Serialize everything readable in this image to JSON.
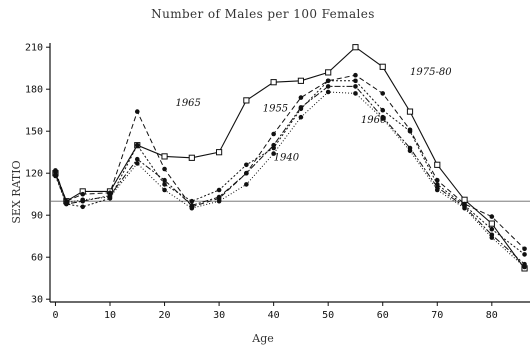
{
  "chart_data": {
    "type": "line",
    "title": "Number of Males per 100 Females",
    "xlabel": "Age",
    "ylabel": "SEX RATIO",
    "xlim": [
      -1,
      87
    ],
    "ylim": [
      28,
      213
    ],
    "xticks": [
      0,
      10,
      20,
      30,
      40,
      50,
      60,
      70,
      80
    ],
    "yticks": [
      30,
      60,
      90,
      120,
      150,
      180,
      210
    ],
    "ytick_labels": [
      "30",
      "60",
      "90",
      "120",
      "150",
      "180",
      "210"
    ],
    "reference_line": 100,
    "grid": false,
    "x": [
      0,
      2,
      5,
      10,
      15,
      20,
      25,
      30,
      35,
      40,
      45,
      50,
      55,
      60,
      65,
      70,
      75,
      80,
      86
    ],
    "series": [
      {
        "name": "1975-80",
        "marker": "square",
        "dash": "0",
        "values": [
          120,
          100,
          107,
          107,
          140,
          132,
          131,
          135,
          172,
          185,
          186,
          192,
          210,
          196,
          164,
          126,
          101,
          84,
          52
        ]
      },
      {
        "name": "1965",
        "marker": "dot",
        "dash": "5 3",
        "values": [
          121,
          100,
          105,
          106,
          164,
          123,
          96,
          102,
          120,
          148,
          174,
          186,
          190,
          177,
          151,
          115,
          98,
          89,
          66
        ]
      },
      {
        "name": "1955",
        "marker": "dot",
        "dash": "2 2",
        "values": [
          118,
          98,
          96,
          102,
          140,
          112,
          100,
          108,
          126,
          138,
          166,
          186,
          186,
          165,
          150,
          112,
          97,
          80,
          62
        ]
      },
      {
        "name": "1960",
        "marker": "dot",
        "dash": "6 2 2 2",
        "values": [
          119,
          98,
          100,
          104,
          130,
          115,
          97,
          103,
          120,
          140,
          167,
          182,
          182,
          160,
          138,
          110,
          96,
          76,
          55
        ]
      },
      {
        "name": "1940",
        "marker": "dot",
        "dash": "1 2",
        "values": [
          122,
          99,
          101,
          103,
          127,
          108,
          95,
          100,
          112,
          134,
          160,
          178,
          177,
          159,
          136,
          108,
          95,
          74,
          53
        ]
      }
    ],
    "annotations": [
      {
        "text": "1965",
        "x": 22,
        "y": 168
      },
      {
        "text": "1975-80",
        "x": 65,
        "y": 190
      },
      {
        "text": "1955",
        "x": 38,
        "y": 164
      },
      {
        "text": "1960",
        "x": 56,
        "y": 156
      },
      {
        "text": "1940",
        "x": 40,
        "y": 129
      }
    ]
  }
}
